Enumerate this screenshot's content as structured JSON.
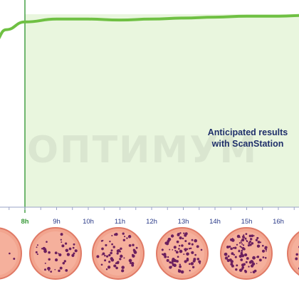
{
  "chart_data": {
    "type": "line",
    "x_ticks": [
      "8h",
      "9h",
      "10h",
      "11h",
      "12h",
      "13h",
      "14h",
      "15h",
      "16h"
    ],
    "highlight_tick": "8h",
    "series": [
      {
        "values": [
          [
            6.8,
            0.72
          ],
          [
            7.05,
            0.86
          ],
          [
            7.4,
            0.92
          ],
          [
            8,
            0.96
          ],
          [
            9,
            0.975
          ],
          [
            10,
            0.975
          ],
          [
            11,
            0.97
          ],
          [
            12,
            0.975
          ],
          [
            13,
            0.98
          ],
          [
            14,
            0.985
          ],
          [
            15,
            0.99
          ],
          [
            16,
            0.99
          ],
          [
            17,
            0.995
          ]
        ]
      }
    ],
    "annotation": [
      "Anticipated results",
      "with ScanStation"
    ],
    "watermark": "ОПТИМУМ",
    "shaded_region_start": "8h",
    "colors": {
      "line": "#6fc043",
      "shade": "#e9f6de",
      "marker": "#3a9a3a",
      "tick_text": "#2a3a88",
      "plate_agar": "#f2a58f",
      "plate_rim": "#e07a66",
      "colony": "#6b1f5e"
    },
    "plates": {
      "hours": [
        "7h",
        "9h",
        "11h",
        "13h",
        "15h",
        "17h"
      ],
      "colony_counts": [
        4,
        40,
        60,
        80,
        100,
        30
      ]
    }
  }
}
